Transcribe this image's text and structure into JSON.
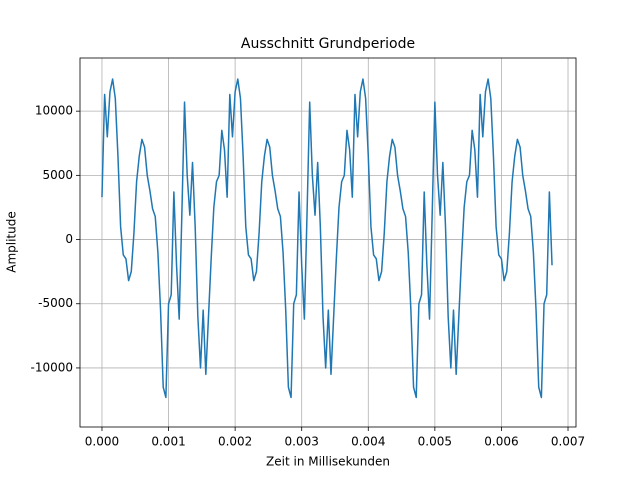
{
  "chart_data": {
    "type": "line",
    "title": "Ausschnitt Grundperiode",
    "x_label": "Zeit in Millisekunden",
    "y_label": "Amplitude",
    "x": [
      0,
      4e-05,
      8e-05,
      0.00012,
      0.00016,
      0.0002,
      0.00024,
      0.00028,
      0.00032,
      0.00036,
      0.0004,
      0.00044,
      0.00048,
      0.00052,
      0.00056,
      0.0006,
      0.00064,
      0.00068,
      0.00072,
      0.00076,
      0.0008,
      0.00084,
      0.00088,
      0.00092,
      0.00096,
      0.001,
      0.00104,
      0.00108,
      0.00112,
      0.00116,
      0.0012,
      0.00124,
      0.00128,
      0.00132,
      0.00136,
      0.0014,
      0.00144,
      0.00148,
      0.00152,
      0.00156,
      0.0016,
      0.00164,
      0.00168,
      0.00172,
      0.00176,
      0.0018,
      0.00184,
      0.00188,
      0.00192,
      0.00196,
      0.002,
      0.00204,
      0.00208,
      0.00212,
      0.00216,
      0.0022,
      0.00224,
      0.00228,
      0.00232,
      0.00236,
      0.0024,
      0.00244,
      0.00248,
      0.00252,
      0.00256,
      0.0026,
      0.00264,
      0.00268,
      0.00272,
      0.00276,
      0.0028,
      0.00284,
      0.00288,
      0.00292,
      0.00296,
      0.003,
      0.00304,
      0.00308,
      0.00312,
      0.00316,
      0.0032,
      0.00324,
      0.00328,
      0.00332,
      0.00336,
      0.0034,
      0.00344,
      0.00348,
      0.00352,
      0.00356,
      0.0036,
      0.00364,
      0.00368,
      0.00372,
      0.00376,
      0.0038,
      0.00384,
      0.00388,
      0.00392,
      0.00396,
      0.004,
      0.00404,
      0.00408,
      0.00412,
      0.00416,
      0.0042,
      0.00424,
      0.00428,
      0.00432,
      0.00436,
      0.0044,
      0.00444,
      0.00448,
      0.00452,
      0.00456,
      0.0046,
      0.00464,
      0.00468,
      0.00472,
      0.00476,
      0.0048,
      0.00484,
      0.00488,
      0.00492,
      0.00496,
      0.005,
      0.00504,
      0.00508,
      0.00512,
      0.00516,
      0.0052,
      0.00524,
      0.00528,
      0.00532,
      0.00536,
      0.0054,
      0.00544,
      0.00548,
      0.00552,
      0.00556,
      0.0056,
      0.00564,
      0.00568,
      0.00572,
      0.00576,
      0.0058,
      0.00584,
      0.00588,
      0.00592,
      0.00596,
      0.006,
      0.00604,
      0.00608,
      0.00612,
      0.00616,
      0.0062,
      0.00624,
      0.00628,
      0.00632,
      0.00636,
      0.0064,
      0.00644,
      0.00648,
      0.00652,
      0.00656,
      0.0066,
      0.00664,
      0.00668,
      0.00672,
      0.00676
    ],
    "series": [
      {
        "name": "Amplitude",
        "color": "#1f77b4",
        "values": [
          3300,
          11300,
          8000,
          11500,
          12500,
          11000,
          6500,
          1000,
          -1200,
          -1500,
          -3200,
          -2500,
          500,
          4500,
          6500,
          7800,
          7200,
          5000,
          3800,
          2400,
          1800,
          -1000,
          -5500,
          -11500,
          -12300,
          -5000,
          -4300,
          3700,
          -2000,
          -6200,
          2000,
          10700,
          5000,
          1900,
          6000,
          1000,
          -6000,
          -10000,
          -5500,
          -10500,
          -6000,
          -1500,
          2500,
          4500,
          5000,
          8500,
          7000,
          3300,
          11300,
          8000,
          11500,
          12500,
          11000,
          6500,
          1000,
          -1200,
          -1500,
          -3200,
          -2500,
          500,
          4500,
          6500,
          7800,
          7200,
          5000,
          3800,
          2400,
          1800,
          -1000,
          -5500,
          -11500,
          -12300,
          -5000,
          -4300,
          3700,
          -2000,
          -6200,
          2000,
          10700,
          5000,
          1900,
          6000,
          1000,
          -6000,
          -10000,
          -5500,
          -10500,
          -6000,
          -1500,
          2500,
          4500,
          5000,
          8500,
          7000,
          3300,
          11300,
          8000,
          11500,
          12500,
          11000,
          6500,
          1000,
          -1200,
          -1500,
          -3200,
          -2500,
          500,
          4500,
          6500,
          7800,
          7200,
          5000,
          3800,
          2400,
          1800,
          -1000,
          -5500,
          -11500,
          -12300,
          -5000,
          -4300,
          3700,
          -2000,
          -6200,
          2000,
          10700,
          5000,
          1900,
          6000,
          1000,
          -6000,
          -10000,
          -5500,
          -10500,
          -6000,
          -1500,
          2500,
          4500,
          5000,
          8500,
          7000,
          3300,
          11300,
          8000,
          11500,
          12500,
          11000,
          6500,
          1000,
          -1200,
          -1500,
          -3200,
          -2500,
          500,
          4500,
          6500,
          7800,
          7200,
          5000,
          3800,
          2400,
          1800,
          -1000,
          -5500,
          -11500,
          -12300,
          -5000,
          -4300,
          3700,
          -2000
        ]
      }
    ],
    "xlim": [
      -0.00033,
      0.00712
    ],
    "ylim": [
      -14600,
      14140
    ],
    "xticks": [
      {
        "value": 0,
        "label": "0.000"
      },
      {
        "value": 0.001,
        "label": "0.001"
      },
      {
        "value": 0.002,
        "label": "0.002"
      },
      {
        "value": 0.003,
        "label": "0.003"
      },
      {
        "value": 0.004,
        "label": "0.004"
      },
      {
        "value": 0.005,
        "label": "0.005"
      },
      {
        "value": 0.006,
        "label": "0.006"
      },
      {
        "value": 0.007,
        "label": "0.007"
      }
    ],
    "yticks": [
      -10000,
      -5000,
      0,
      5000,
      10000
    ],
    "grid": true
  }
}
